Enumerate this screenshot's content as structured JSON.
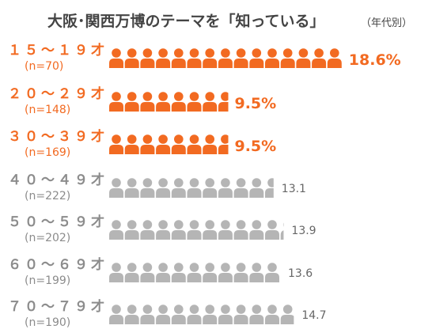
{
  "chart_data": {
    "type": "bar",
    "title": "大阪･関西万博のテーマを「知っている」",
    "subtitle": "（年代別）",
    "categories": [
      "１５～１９才",
      "２０～２９才",
      "３０～３９才",
      "４０～４９才",
      "５０～５９才",
      "６０～６９才",
      "７０～７９才"
    ],
    "sample_sizes": [
      "(n=70)",
      "(n=148)",
      "(n=169)",
      "(n=222)",
      "(n=202)",
      "(n=199)",
      "(n=190)"
    ],
    "values": [
      18.6,
      9.5,
      9.5,
      13.1,
      13.9,
      13.6,
      14.7
    ],
    "value_labels": [
      "18.6%",
      "9.5%",
      "9.5%",
      "13.1",
      "13.9",
      "13.6",
      "14.7"
    ],
    "highlighted": [
      true,
      true,
      true,
      false,
      false,
      false,
      false
    ],
    "colors": {
      "highlight": "#f26a21",
      "normal": "#b5b5b5",
      "normal_text": "#8c8c8c",
      "title": "#444444"
    },
    "icon": "person-icon"
  }
}
